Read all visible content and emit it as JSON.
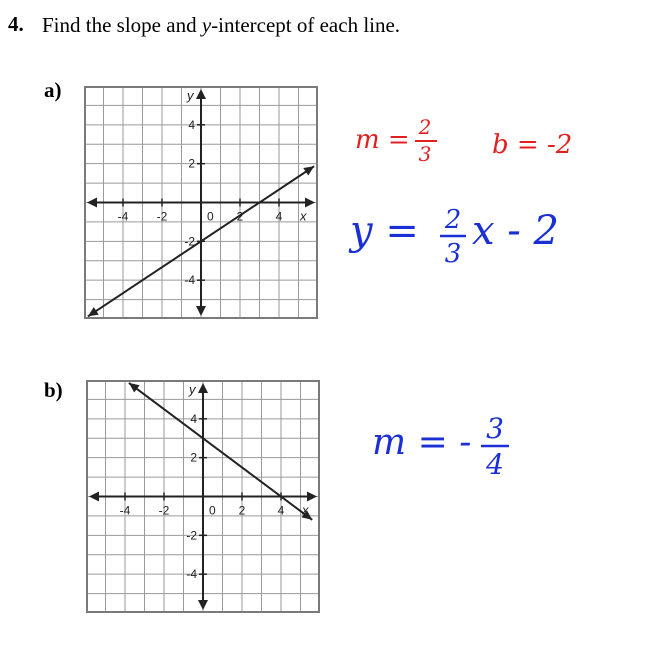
{
  "question": {
    "number": "4.",
    "text_pre": "Find the slope and ",
    "text_var": "y",
    "text_post": "-intercept of each line."
  },
  "parts": [
    {
      "label": "a)",
      "axis": {
        "x_label": "x",
        "y_label": "y",
        "x_ticks": [
          "-4",
          "-2",
          "0",
          "2",
          "4"
        ],
        "y_ticks": [
          "4",
          "2",
          "-2",
          "-4"
        ]
      },
      "line": {
        "slope": 0.6667,
        "intercept": -2,
        "x_start": -5.8,
        "x_end": 5.8
      },
      "work": {
        "slope_label": "m =",
        "slope_num": "2",
        "slope_den": "3",
        "intercept_label": "b = -2",
        "eq_left": "y =",
        "eq_num": "2",
        "eq_den": "3",
        "eq_right": "x - 2",
        "color_red": "#e02020",
        "color_blue": "#1a2fd6"
      }
    },
    {
      "label": "b)",
      "axis": {
        "x_label": "x",
        "y_label": "y",
        "x_ticks": [
          "-4",
          "-2",
          "0",
          "2",
          "4"
        ],
        "y_ticks": [
          "4",
          "2",
          "-2",
          "-4"
        ]
      },
      "line": {
        "slope": -0.75,
        "intercept": 3,
        "x_start": -3.8,
        "x_end": 5.6
      },
      "work": {
        "slope_label": "m = -",
        "slope_num": "3",
        "slope_den": "4",
        "color_blue": "#1a2fd6"
      }
    }
  ]
}
